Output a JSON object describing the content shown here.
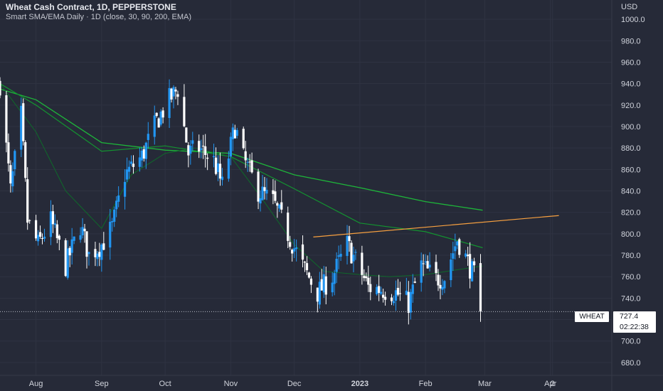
{
  "header": {
    "title": "Wheat Cash Contract, 1D, PEPPERSTONE",
    "subtitle": "Smart SMA/EMA Daily · 1D (close, 30, 90, 200, EMA)"
  },
  "axis": {
    "currency": "USD",
    "y_ticks": [
      "1000.0",
      "980.0",
      "960.0",
      "940.0",
      "920.0",
      "900.0",
      "880.0",
      "860.0",
      "840.0",
      "820.0",
      "800.0",
      "780.0",
      "760.0",
      "740.0",
      "720.0",
      "700.0",
      "680.0"
    ],
    "x_ticks": [
      "Aug",
      "Sep",
      "Oct",
      "Nov",
      "Dec",
      "2023",
      "Feb",
      "Mar",
      "Apr",
      "2"
    ]
  },
  "last_price": {
    "symbol": "WHEAT",
    "price": "727.4",
    "countdown": "02:22:38"
  },
  "colors": {
    "background": "#262a38",
    "grid": "#2f3342",
    "up_candle": "#2196f3",
    "down_candle": "#ffffff",
    "ema_200": "#1eb53a",
    "ema_90": "#139430",
    "ema_30": "#0e6a2a",
    "trendline": "#f7a040",
    "text": "#d1d4dc"
  },
  "chart_data": {
    "type": "candlestick",
    "instrument": "Wheat Cash Contract",
    "timeframe": "1D",
    "exchange": "PEPPERSTONE",
    "y_range": [
      668,
      1018
    ],
    "x_range": [
      "2022-07-15",
      "2023-04-30"
    ],
    "x_tick_dates": [
      "2022-08-01",
      "2022-09-01",
      "2022-10-01",
      "2022-11-01",
      "2022-12-01",
      "2023-01-01",
      "2023-02-01",
      "2023-03-01",
      "2023-04-01",
      "2023-04-02"
    ],
    "last_close": 727.4,
    "candle_close_path": [
      [
        "2022-07-15",
        940
      ],
      [
        "2022-07-20",
        840
      ],
      [
        "2022-07-25",
        910
      ],
      [
        "2022-07-28",
        812
      ],
      [
        "2022-08-02",
        790
      ],
      [
        "2022-08-08",
        812
      ],
      [
        "2022-08-15",
        770
      ],
      [
        "2022-08-22",
        808
      ],
      [
        "2022-08-26",
        780
      ],
      [
        "2022-09-01",
        790
      ],
      [
        "2022-09-06",
        806
      ],
      [
        "2022-09-12",
        855
      ],
      [
        "2022-09-20",
        872
      ],
      [
        "2022-09-27",
        905
      ],
      [
        "2022-10-03",
        925
      ],
      [
        "2022-10-07",
        935
      ],
      [
        "2022-10-12",
        875
      ],
      [
        "2022-10-17",
        880
      ],
      [
        "2022-10-24",
        868
      ],
      [
        "2022-10-28",
        845
      ],
      [
        "2022-11-03",
        900
      ],
      [
        "2022-11-07",
        870
      ],
      [
        "2022-11-14",
        840
      ],
      [
        "2022-11-21",
        830
      ],
      [
        "2022-11-28",
        800
      ],
      [
        "2022-12-05",
        770
      ],
      [
        "2022-12-12",
        745
      ],
      [
        "2022-12-19",
        760
      ],
      [
        "2022-12-26",
        790
      ],
      [
        "2022-12-30",
        775
      ],
      [
        "2023-01-05",
        750
      ],
      [
        "2023-01-12",
        748
      ],
      [
        "2023-01-18",
        745
      ],
      [
        "2023-01-24",
        735
      ],
      [
        "2023-01-30",
        770
      ],
      [
        "2023-02-06",
        758
      ],
      [
        "2023-02-10",
        760
      ],
      [
        "2023-02-16",
        795
      ],
      [
        "2023-02-20",
        778
      ],
      [
        "2023-02-24",
        760
      ],
      [
        "2023-02-27",
        727.4
      ]
    ],
    "indicator_lines": [
      {
        "name": "200",
        "points": [
          [
            "2022-07-15",
            935
          ],
          [
            "2022-08-01",
            925
          ],
          [
            "2022-09-01",
            885
          ],
          [
            "2022-10-01",
            878
          ],
          [
            "2022-11-01",
            875
          ],
          [
            "2022-12-01",
            855
          ],
          [
            "2023-01-01",
            843
          ],
          [
            "2023-02-01",
            830
          ],
          [
            "2023-02-28",
            822
          ]
        ]
      },
      {
        "name": "90",
        "points": [
          [
            "2022-07-15",
            940
          ],
          [
            "2022-08-01",
            920
          ],
          [
            "2022-09-01",
            877
          ],
          [
            "2022-10-01",
            882
          ],
          [
            "2022-11-01",
            872
          ],
          [
            "2022-12-01",
            842
          ],
          [
            "2023-01-01",
            810
          ],
          [
            "2023-02-01",
            802
          ],
          [
            "2023-02-28",
            787
          ]
        ]
      },
      {
        "name": "30",
        "points": [
          [
            "2022-07-15",
            940
          ],
          [
            "2022-08-01",
            895
          ],
          [
            "2022-08-15",
            840
          ],
          [
            "2022-09-01",
            805
          ],
          [
            "2022-09-15",
            855
          ],
          [
            "2022-10-01",
            875
          ],
          [
            "2022-10-15",
            880
          ],
          [
            "2022-11-01",
            872
          ],
          [
            "2022-11-15",
            835
          ],
          [
            "2022-12-01",
            790
          ],
          [
            "2022-12-15",
            765
          ],
          [
            "2023-01-01",
            762
          ],
          [
            "2023-01-15",
            760
          ],
          [
            "2023-02-01",
            762
          ],
          [
            "2023-02-28",
            770
          ]
        ]
      }
    ],
    "annotations": [
      {
        "type": "trendline",
        "from": [
          "2022-12-10",
          797
        ],
        "to": [
          "2023-04-05",
          817
        ]
      }
    ],
    "last_price_line": 727.4
  }
}
